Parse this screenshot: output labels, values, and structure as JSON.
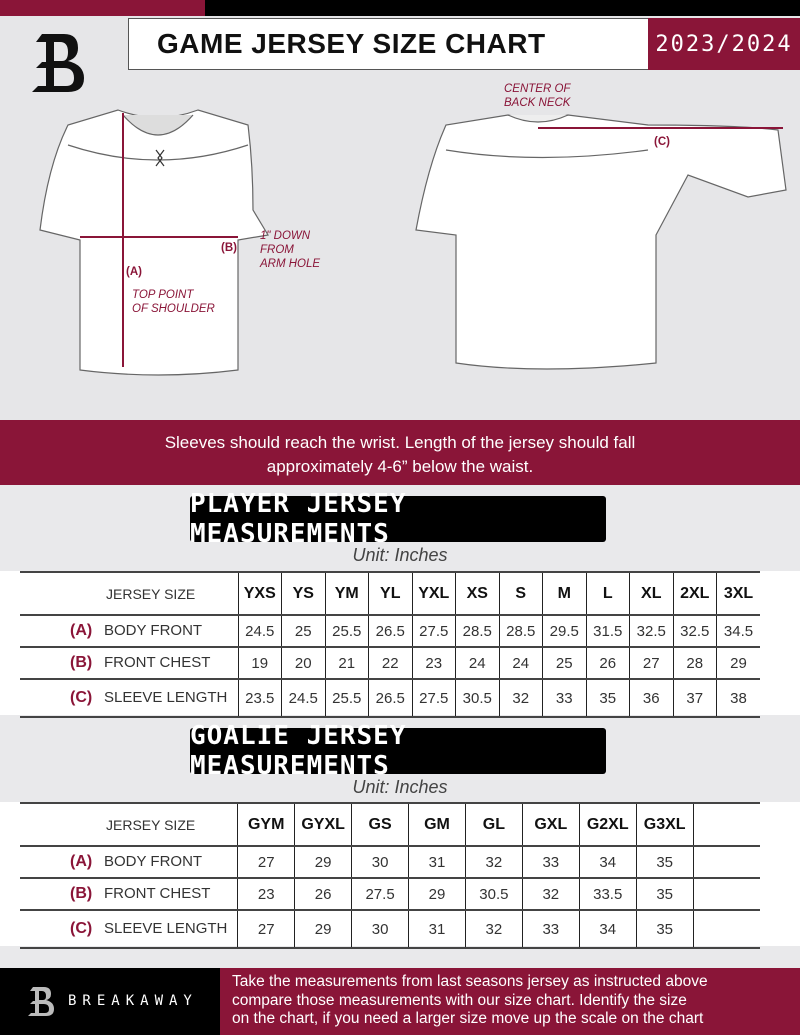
{
  "header": {
    "title": "GAME JERSEY SIZE CHART",
    "season": "2023/2024"
  },
  "diagram": {
    "notes": {
      "back_neck": [
        "CENTER OF",
        "BACK NECK"
      ],
      "down": [
        "1\" DOWN",
        "FROM",
        "ARM HOLE"
      ],
      "shoulder": [
        "TOP POINT",
        "OF SHOULDER"
      ]
    },
    "labels": {
      "a": "(A)",
      "b": "(B)",
      "c": "(C)"
    }
  },
  "banner": {
    "line1": "Sleeves should reach the wrist. Length of the jersey should fall",
    "line2": "approximately 4-6” below the waist."
  },
  "player": {
    "title": "PLAYER JERSEY MEASUREMENTS",
    "unit": "Unit: Inches",
    "size_label": "JERSEY SIZE",
    "sizes": [
      "YXS",
      "YS",
      "YM",
      "YL",
      "YXL",
      "XS",
      "S",
      "M",
      "L",
      "XL",
      "2XL",
      "3XL"
    ],
    "rows": [
      {
        "letter": "(A)",
        "name": "BODY FRONT",
        "values": [
          "24.5",
          "25",
          "25.5",
          "26.5",
          "27.5",
          "28.5",
          "28.5",
          "29.5",
          "31.5",
          "32.5",
          "32.5",
          "34.5"
        ]
      },
      {
        "letter": "(B)",
        "name": "FRONT CHEST",
        "values": [
          "19",
          "20",
          "21",
          "22",
          "23",
          "24",
          "24",
          "25",
          "26",
          "27",
          "28",
          "29"
        ]
      },
      {
        "letter": "(C)",
        "name": "SLEEVE LENGTH",
        "values": [
          "23.5",
          "24.5",
          "25.5",
          "26.5",
          "27.5",
          "30.5",
          "32",
          "33",
          "35",
          "36",
          "37",
          "38"
        ]
      }
    ]
  },
  "goalie": {
    "title": "GOALIE JERSEY MEASUREMENTS",
    "unit": "Unit: Inches",
    "size_label": "JERSEY SIZE",
    "sizes": [
      "GYM",
      "GYXL",
      "GS",
      "GM",
      "GL",
      "GXL",
      "G2XL",
      "G3XL",
      ""
    ],
    "rows": [
      {
        "letter": "(A)",
        "name": "BODY FRONT",
        "values": [
          "27",
          "29",
          "30",
          "31",
          "32",
          "33",
          "34",
          "35",
          ""
        ]
      },
      {
        "letter": "(B)",
        "name": "FRONT CHEST",
        "values": [
          "23",
          "26",
          "27.5",
          "29",
          "30.5",
          "32",
          "33.5",
          "35",
          ""
        ]
      },
      {
        "letter": "(C)",
        "name": "SLEEVE LENGTH",
        "values": [
          "27",
          "29",
          "30",
          "31",
          "32",
          "33",
          "34",
          "35",
          ""
        ]
      }
    ]
  },
  "footer": {
    "brand": "BREAKAWAY",
    "text": [
      "Take the measurements from last seasons jersey as instructed above",
      "compare those measurements  with our size chart. Identify the size",
      "on the chart, if you need a larger size move up the scale on the chart"
    ]
  },
  "colors": {
    "accent": "#8a1538",
    "dark": "#000000",
    "background": "#e6e6e8"
  }
}
